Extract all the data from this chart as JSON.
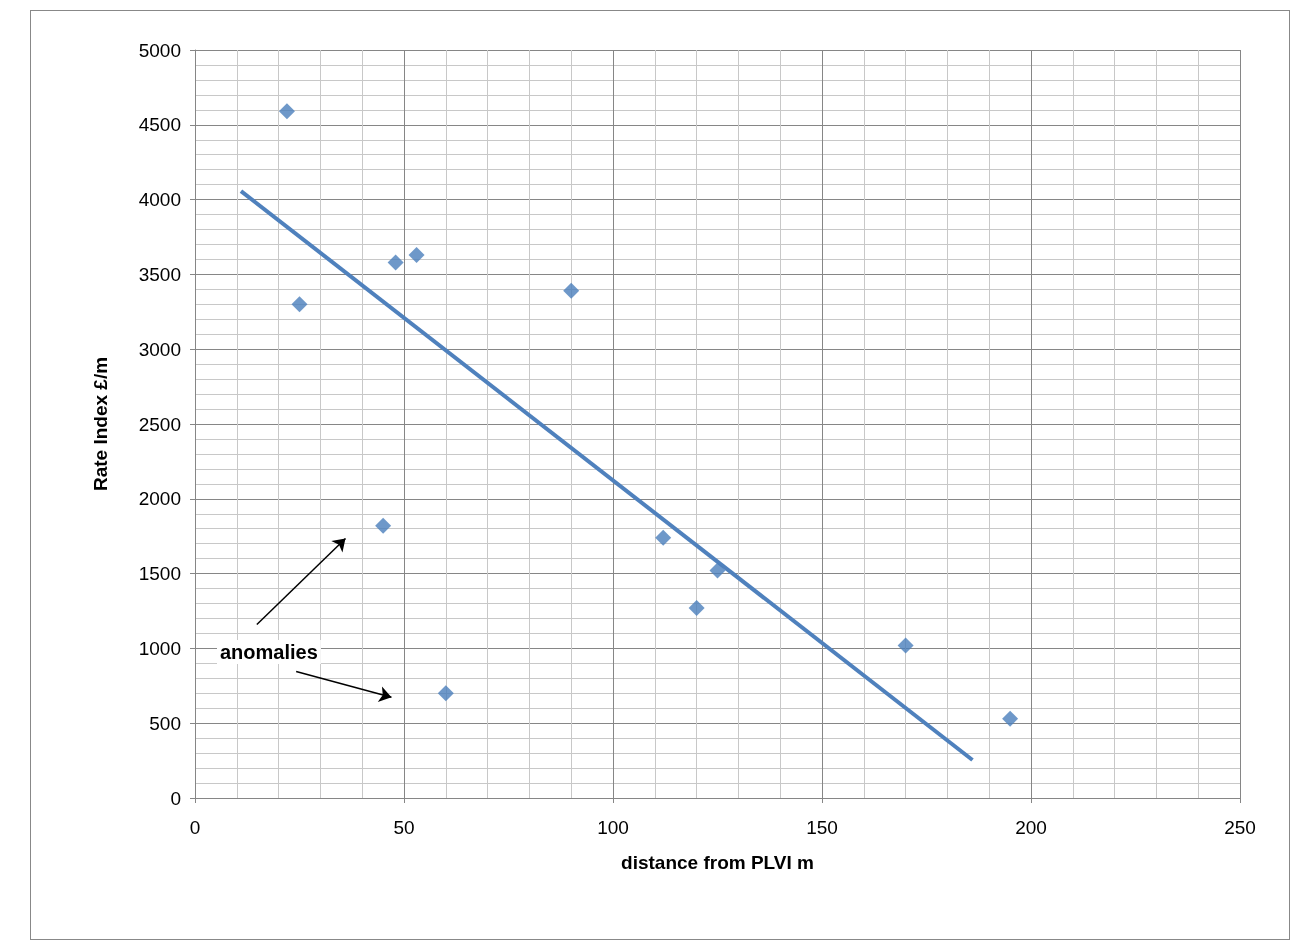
{
  "chart_data": {
    "type": "scatter",
    "xlabel": "distance from PLVI m",
    "ylabel": "Rate Index £/m",
    "annotations": [
      "anomalies"
    ],
    "series": [
      {
        "color": "#4a7ebb",
        "marker": "diamond",
        "x": [
          22,
          25,
          48,
          53,
          90,
          45,
          60,
          112,
          125,
          120,
          170,
          195
        ],
        "values": [
          4590,
          3300,
          3580,
          3630,
          3390,
          1820,
          700,
          1740,
          1520,
          1270,
          1020,
          530
        ]
      },
      {
        "type": "line",
        "color": "#4f81bd",
        "marker": "none",
        "x": [
          11,
          186
        ],
        "values": [
          4057,
          254
        ]
      }
    ],
    "xlim": [
      0,
      250
    ],
    "xticks": [
      0,
      50,
      100,
      150,
      200,
      250
    ],
    "ylim": [
      0,
      5000
    ],
    "yticks": [
      0,
      500,
      1000,
      1500,
      2000,
      2500,
      3000,
      3500,
      4000,
      4500,
      5000
    ],
    "grid": true
  }
}
